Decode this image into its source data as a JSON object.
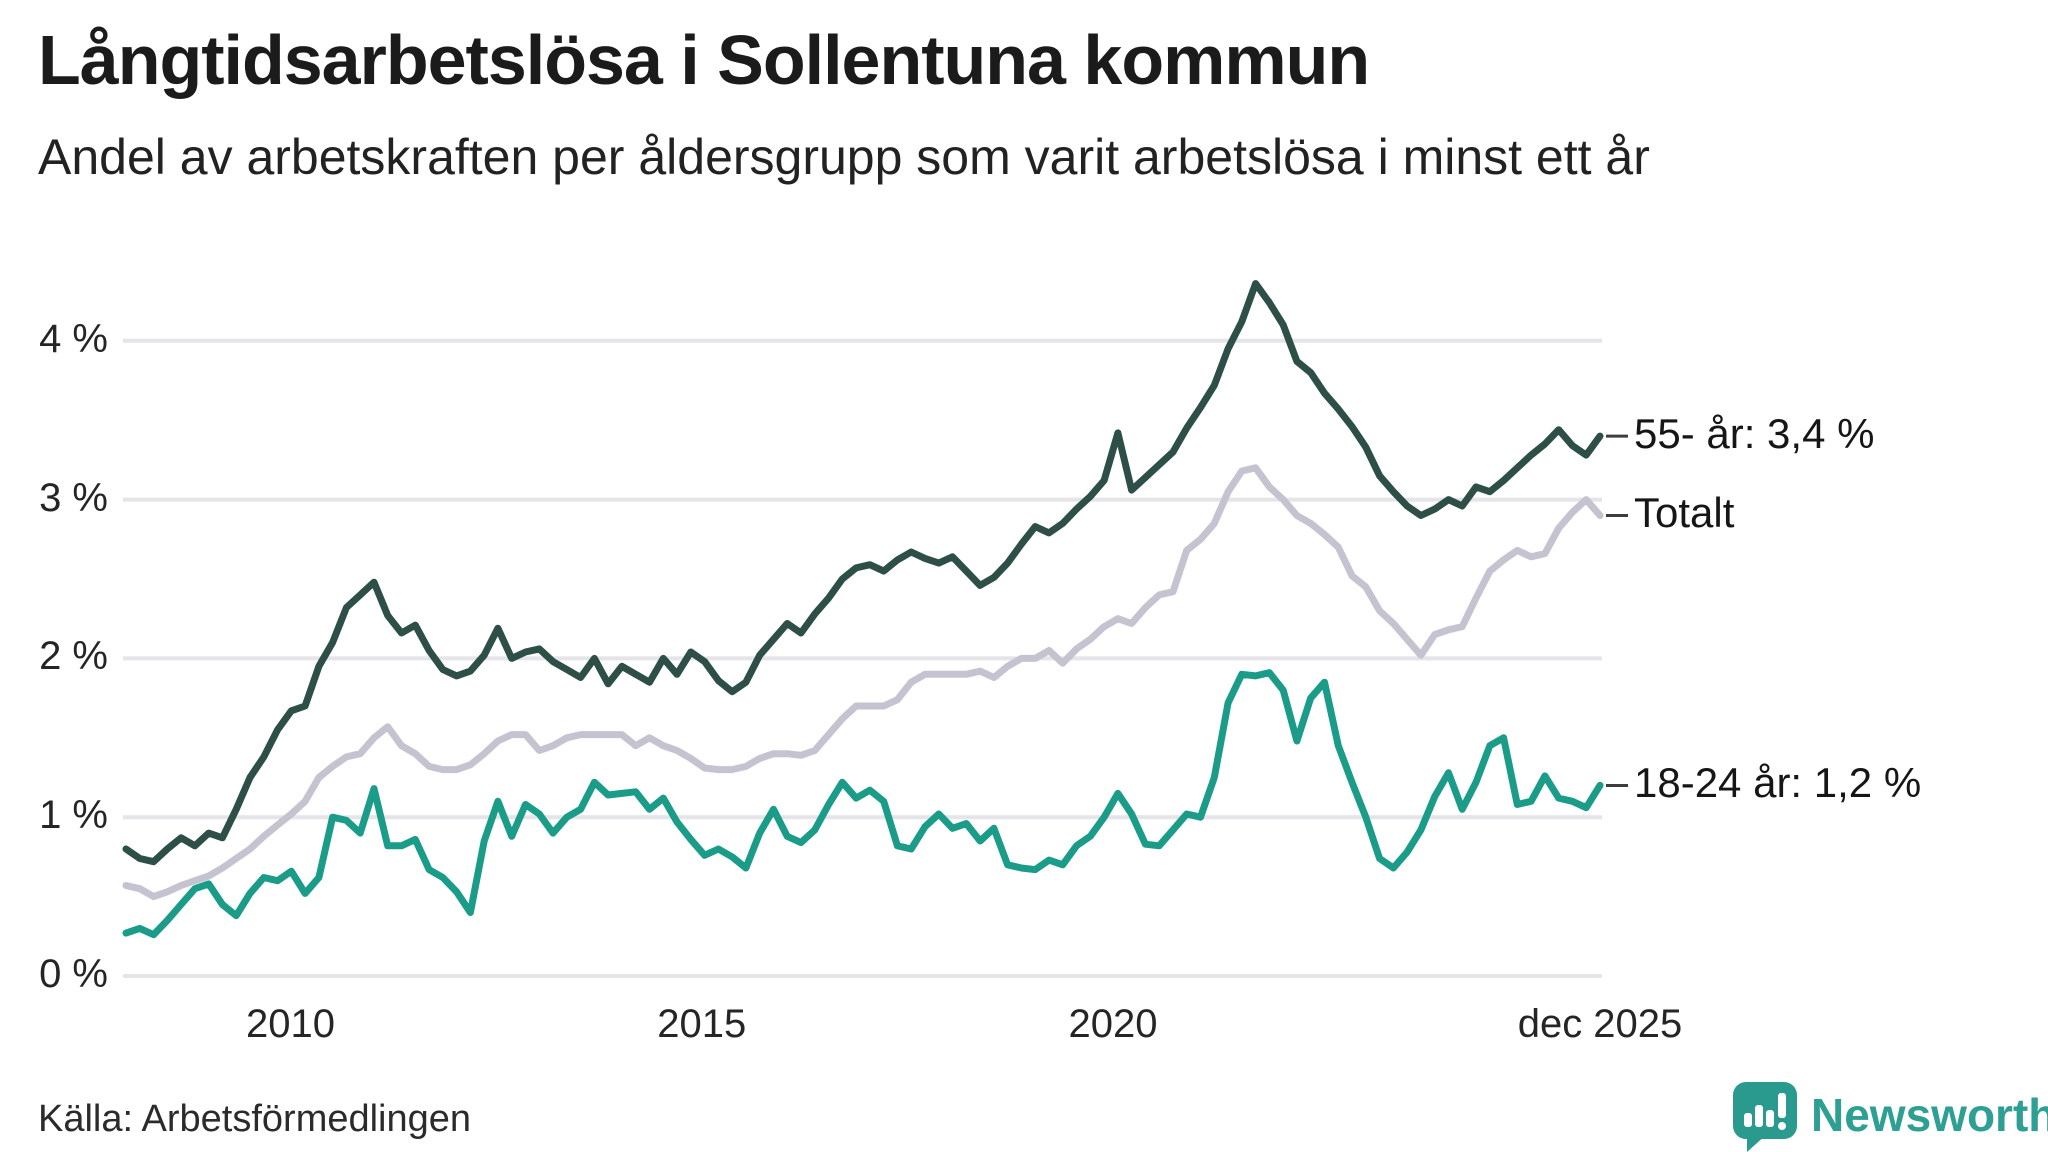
{
  "header": {
    "title": "Långtidsarbetslösa i Sollentuna kommun",
    "subtitle": "Andel av arbetskraften per åldersgrupp som varit arbetslösa i minst ett år"
  },
  "footer": {
    "source": "Källa: Arbetsförmedlingen",
    "logo_text": "Newsworthy"
  },
  "colors": {
    "series_55": "#2d4f47",
    "series_total": "#c6c3d0",
    "series_1824": "#1a9c89",
    "gridline": "#e4e4e9",
    "connector": "#3d3d3d",
    "text": "#1b1b1b",
    "logo_teal": "#2a9a8e",
    "background": "#ffffff"
  },
  "chart_data": {
    "type": "line",
    "title": "Långtidsarbetslösa i Sollentuna kommun",
    "subtitle": "Andel av arbetskraften per åldersgrupp som varit arbetslösa i minst ett år",
    "unit": "% av arbetskraften",
    "grid": true,
    "legend_position": "end-of-line labels, right",
    "x_axis": {
      "start_year": 2008.0,
      "end_year": 2025.92,
      "points_per_year": 6,
      "ticks": [
        {
          "label": "2010",
          "year": 2010
        },
        {
          "label": "2015",
          "year": 2015
        },
        {
          "label": "2020",
          "year": 2020
        },
        {
          "label": "dec 2025",
          "year": 2025.92
        }
      ]
    },
    "y_axis": {
      "ylim": [
        0,
        4.45
      ],
      "ticks": [
        {
          "label": "0 %",
          "value": 0
        },
        {
          "label": "1 %",
          "value": 1
        },
        {
          "label": "2 %",
          "value": 2
        },
        {
          "label": "3 %",
          "value": 3
        },
        {
          "label": "4 %",
          "value": 4
        }
      ]
    },
    "series": [
      {
        "name": "Totalt",
        "label": "Totalt",
        "end_value": 2.9,
        "color": "#c6c3d0",
        "values": [
          0.57,
          0.55,
          0.5,
          0.53,
          0.57,
          0.6,
          0.63,
          0.68,
          0.74,
          0.8,
          0.88,
          0.95,
          1.02,
          1.1,
          1.25,
          1.32,
          1.38,
          1.4,
          1.5,
          1.57,
          1.45,
          1.4,
          1.32,
          1.3,
          1.3,
          1.33,
          1.4,
          1.48,
          1.52,
          1.52,
          1.42,
          1.45,
          1.5,
          1.52,
          1.52,
          1.52,
          1.52,
          1.45,
          1.5,
          1.45,
          1.42,
          1.37,
          1.31,
          1.3,
          1.3,
          1.32,
          1.37,
          1.4,
          1.4,
          1.39,
          1.42,
          1.52,
          1.62,
          1.7,
          1.7,
          1.7,
          1.74,
          1.85,
          1.9,
          1.9,
          1.9,
          1.9,
          1.92,
          1.88,
          1.95,
          2.0,
          2.0,
          2.05,
          1.97,
          2.06,
          2.12,
          2.2,
          2.25,
          2.22,
          2.32,
          2.4,
          2.42,
          2.68,
          2.75,
          2.85,
          3.05,
          3.18,
          3.2,
          3.08,
          3.0,
          2.9,
          2.85,
          2.78,
          2.7,
          2.52,
          2.45,
          2.3,
          2.22,
          2.12,
          2.02,
          2.15,
          2.18,
          2.2,
          2.38,
          2.55,
          2.62,
          2.68,
          2.64,
          2.66,
          2.82,
          2.92,
          3.0,
          2.9
        ]
      },
      {
        "name": "55- år",
        "label": "55- år: 3,4 %",
        "end_value": 3.4,
        "color": "#2d4f47",
        "values": [
          0.8,
          0.74,
          0.72,
          0.8,
          0.87,
          0.82,
          0.9,
          0.87,
          1.05,
          1.25,
          1.38,
          1.55,
          1.67,
          1.7,
          1.95,
          2.1,
          2.32,
          2.4,
          2.48,
          2.27,
          2.16,
          2.21,
          2.05,
          1.93,
          1.89,
          1.92,
          2.02,
          2.19,
          2.0,
          2.04,
          2.06,
          1.98,
          1.93,
          1.88,
          2.0,
          1.84,
          1.95,
          1.9,
          1.85,
          2.0,
          1.9,
          2.04,
          1.98,
          1.86,
          1.79,
          1.85,
          2.02,
          2.12,
          2.22,
          2.16,
          2.28,
          2.38,
          2.5,
          2.57,
          2.59,
          2.55,
          2.62,
          2.67,
          2.63,
          2.6,
          2.64,
          2.55,
          2.46,
          2.51,
          2.6,
          2.72,
          2.83,
          2.79,
          2.85,
          2.94,
          3.02,
          3.12,
          3.42,
          3.06,
          3.14,
          3.22,
          3.3,
          3.45,
          3.58,
          3.72,
          3.95,
          4.12,
          4.36,
          4.24,
          4.1,
          3.87,
          3.8,
          3.67,
          3.57,
          3.46,
          3.33,
          3.15,
          3.05,
          2.96,
          2.9,
          2.94,
          3.0,
          2.96,
          3.08,
          3.05,
          3.12,
          3.2,
          3.28,
          3.35,
          3.44,
          3.34,
          3.28,
          3.4
        ]
      },
      {
        "name": "18-24 år",
        "label": "18-24 år: 1,2 %",
        "end_value": 1.2,
        "color": "#1a9c89",
        "values": [
          0.27,
          0.3,
          0.26,
          0.35,
          0.45,
          0.55,
          0.58,
          0.45,
          0.38,
          0.52,
          0.62,
          0.6,
          0.66,
          0.52,
          0.62,
          1.0,
          0.98,
          0.9,
          1.18,
          0.82,
          0.82,
          0.86,
          0.67,
          0.62,
          0.53,
          0.4,
          0.85,
          1.1,
          0.88,
          1.08,
          1.02,
          0.9,
          1.0,
          1.05,
          1.22,
          1.14,
          1.15,
          1.16,
          1.05,
          1.12,
          0.97,
          0.86,
          0.76,
          0.8,
          0.75,
          0.68,
          0.9,
          1.05,
          0.88,
          0.84,
          0.92,
          1.08,
          1.22,
          1.12,
          1.17,
          1.1,
          0.82,
          0.8,
          0.94,
          1.02,
          0.93,
          0.96,
          0.85,
          0.93,
          0.7,
          0.68,
          0.67,
          0.73,
          0.7,
          0.82,
          0.88,
          1.0,
          1.15,
          1.02,
          0.83,
          0.82,
          0.92,
          1.02,
          1.0,
          1.25,
          1.72,
          1.9,
          1.89,
          1.91,
          1.8,
          1.48,
          1.75,
          1.85,
          1.45,
          1.22,
          1.0,
          0.74,
          0.68,
          0.78,
          0.92,
          1.13,
          1.28,
          1.05,
          1.22,
          1.45,
          1.5,
          1.08,
          1.1,
          1.26,
          1.12,
          1.1,
          1.06,
          1.2
        ]
      }
    ]
  }
}
